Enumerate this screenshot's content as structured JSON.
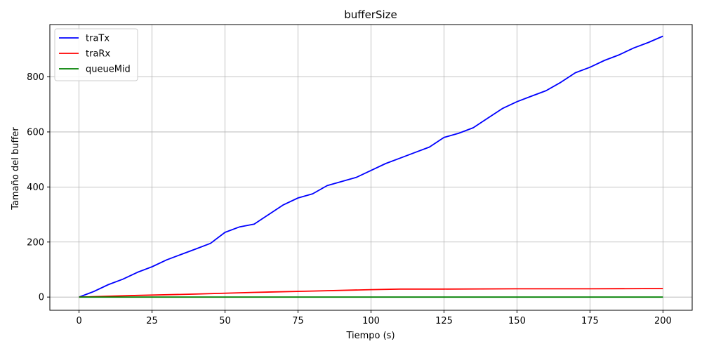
{
  "chart_data": {
    "type": "line",
    "title": "bufferSize",
    "xlabel": "Tiempo (s)",
    "ylabel": "Tamaño del buffer",
    "xlim": [
      -10,
      210
    ],
    "ylim": [
      -48,
      990
    ],
    "grid": true,
    "legend_position": "top-left",
    "x_ticks": [
      0,
      25,
      50,
      75,
      100,
      125,
      150,
      175,
      200
    ],
    "y_ticks": [
      0,
      200,
      400,
      600,
      800
    ],
    "series": [
      {
        "name": "traTx",
        "color": "#0000ff",
        "x": [
          0,
          5,
          10,
          15,
          20,
          25,
          30,
          35,
          40,
          45,
          50,
          55,
          60,
          65,
          70,
          75,
          80,
          85,
          90,
          95,
          100,
          105,
          110,
          115,
          120,
          125,
          130,
          135,
          140,
          145,
          150,
          155,
          160,
          165,
          170,
          175,
          180,
          185,
          190,
          195,
          200
        ],
        "values": [
          0,
          20,
          45,
          65,
          90,
          110,
          135,
          155,
          175,
          195,
          235,
          255,
          265,
          300,
          335,
          360,
          375,
          405,
          420,
          435,
          460,
          485,
          505,
          525,
          545,
          580,
          595,
          615,
          650,
          685,
          710,
          730,
          750,
          780,
          815,
          835,
          860,
          880,
          905,
          925,
          948
        ]
      },
      {
        "name": "traRx",
        "color": "#ff0000",
        "x": [
          0,
          20,
          40,
          60,
          80,
          100,
          110,
          125,
          150,
          175,
          200
        ],
        "values": [
          0,
          6,
          11,
          17,
          22,
          27,
          29,
          29,
          30,
          30,
          31
        ]
      },
      {
        "name": "queueMid",
        "color": "#008000",
        "x": [
          0,
          200
        ],
        "values": [
          0,
          0
        ]
      }
    ]
  }
}
